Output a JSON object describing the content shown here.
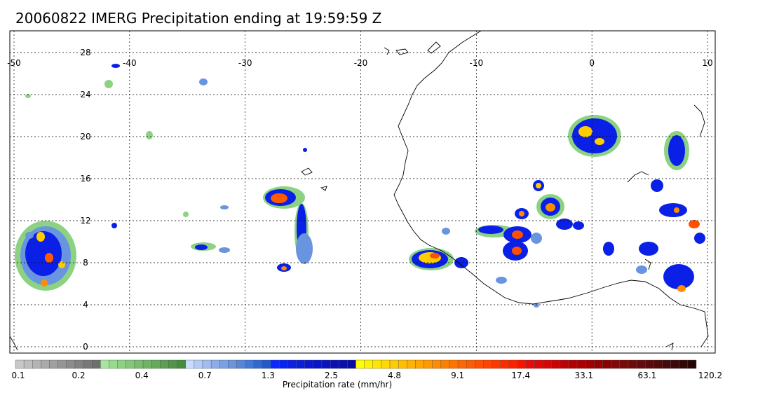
{
  "title": "20060822 IMERG Precipitation ending at 19:59:59 Z",
  "map": {
    "lon_range": [
      -50,
      10
    ],
    "lat_range": [
      -0.5,
      30
    ],
    "lon_ticks": [
      "-50",
      "-40",
      "-30",
      "-20",
      "-10",
      "0",
      "10"
    ],
    "lat_ticks": [
      "28",
      "24",
      "20",
      "16",
      "12",
      "8",
      "4",
      "0"
    ],
    "grid": "dotted",
    "coastline_color": "#000000"
  },
  "colorbar": {
    "title": "Precipitation rate (mm/hr)",
    "tick_labels": [
      "0.1",
      "0.2",
      "0.4",
      "0.7",
      "1.3",
      "2.5",
      "4.8",
      "9.1",
      "17.4",
      "33.1",
      "63.1",
      "120.2"
    ],
    "colors": [
      "#c8c8c8",
      "#bebebe",
      "#b4b4b4",
      "#aaaaaa",
      "#a0a0a0",
      "#969696",
      "#8c8c8c",
      "#828282",
      "#787878",
      "#6e6e6e",
      "#a8e6a0",
      "#96dc8c",
      "#8cd282",
      "#82c878",
      "#78be6e",
      "#6eb464",
      "#64aa5a",
      "#5aa050",
      "#509646",
      "#468c3c",
      "#c8dcff",
      "#b4ccf5",
      "#a0bcf0",
      "#8cacea",
      "#7aa0e6",
      "#6894e0",
      "#5686da",
      "#4478d6",
      "#3268d2",
      "#205ad0",
      "#0a28ff",
      "#0a24f0",
      "#0a20e6",
      "#0a1cdc",
      "#0a18d2",
      "#0a14c8",
      "#0a12be",
      "#0a10b4",
      "#0a0eaa",
      "#0a0ca0",
      "#ffff00",
      "#fff200",
      "#ffe600",
      "#ffd900",
      "#ffcc00",
      "#ffbf00",
      "#ffb300",
      "#ffa600",
      "#ff9900",
      "#ff8c00",
      "#ff8000",
      "#ff7400",
      "#ff6800",
      "#ff5c00",
      "#ff5000",
      "#ff4400",
      "#ff3800",
      "#ff2c00",
      "#ff2000",
      "#f51400",
      "#e60a0a",
      "#dc0808",
      "#d20606",
      "#c80404",
      "#be0202",
      "#b40000",
      "#aa0000",
      "#a00000",
      "#960000",
      "#8c0000",
      "#820808",
      "#780a0a",
      "#6e0a0a",
      "#640a0a",
      "#5a0a0a",
      "#500a0a",
      "#460a0a",
      "#3c0808",
      "#320606",
      "#280404"
    ]
  }
}
